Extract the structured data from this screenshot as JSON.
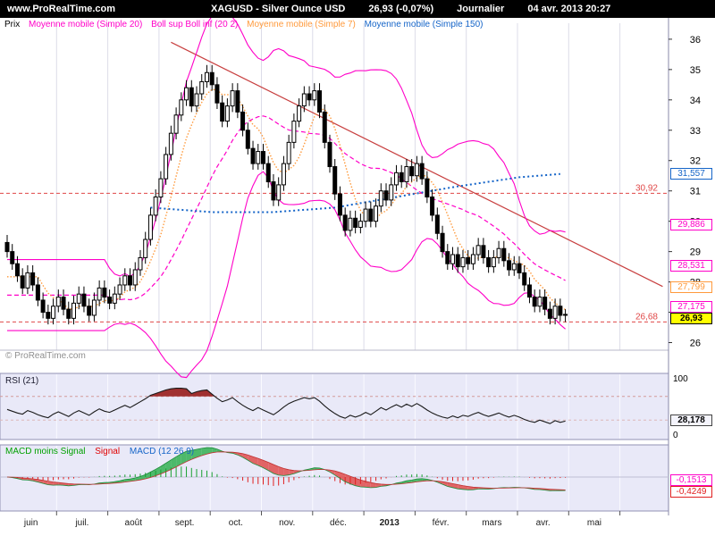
{
  "topbar": {
    "site": "www.ProRealTime.com",
    "instrument": "XAGUSD - Silver Ounce USD",
    "last_price": "26,93 (-0,07%)",
    "period": "Journalier",
    "datetime": "04 avr. 2013 20:27"
  },
  "legend": {
    "items": [
      {
        "label": "Prix",
        "color": "#000000"
      },
      {
        "label": "Moyenne mobile (Simple 20)",
        "color": "#ff00c8"
      },
      {
        "label": "Boll sup Boll inf (20 2)",
        "color": "#ff00c8"
      },
      {
        "label": "Moyenne mobile (Simple 7)",
        "color": "#ff9a3c"
      },
      {
        "label": "Moyenne mobile (Simple 150)",
        "color": "#1464c8"
      }
    ]
  },
  "watermark": "© ProRealTime.com",
  "rsi_panel": {
    "label": "RSI (21)",
    "axis_max": "100",
    "axis_min": "0",
    "last_value": "28,178",
    "last_value_num": 28.178
  },
  "macd_panel": {
    "labels": [
      {
        "label": "MACD moins Signal",
        "color": "#00a000"
      },
      {
        "label": "Signal",
        "color": "#e00000"
      },
      {
        "label": "MACD (12 26 9)",
        "color": "#1464c8"
      }
    ],
    "tags": [
      {
        "text": "-0,1513",
        "value": -0.1513,
        "color": "#ff00c8"
      },
      {
        "text": "-0,4249",
        "value": -0.4249,
        "color": "#e02020"
      }
    ]
  },
  "price_tags": [
    {
      "text": "31,557",
      "value": 31.557,
      "color": "#1464c8"
    },
    {
      "text": "29,886",
      "value": 29.886,
      "color": "#ff00c8"
    },
    {
      "text": "28,531",
      "value": 28.531,
      "color": "#ff00c8"
    },
    {
      "text": "27,799",
      "value": 27.799,
      "color": "#ff9a3c"
    },
    {
      "text": "27,175",
      "value": 27.175,
      "color": "#ff00c8"
    },
    {
      "text": "26,93",
      "value": 26.93,
      "color": "#000000",
      "bg": "#ffff00"
    }
  ],
  "levels": [
    {
      "value": 30.92,
      "label": "30,92"
    },
    {
      "value": 26.68,
      "label": "26,68"
    }
  ],
  "chart_data": {
    "type": "candlestick",
    "title": "XAGUSD - Silver Ounce USD",
    "period": "Journalier (daily)",
    "months": [
      "juin",
      "juil.",
      "août",
      "sept.",
      "oct.",
      "nov.",
      "déc.",
      "2013",
      "févr.",
      "mars",
      "avr.",
      "mai"
    ],
    "candles_per_month": 10,
    "y_ticks": [
      26,
      27,
      28,
      29,
      30,
      31,
      32,
      33,
      34,
      35,
      36
    ],
    "y_range": [
      25.75,
      36.35
    ],
    "candles": [
      [
        29.3,
        29.55,
        28.8,
        29.0
      ],
      [
        29.0,
        29.25,
        28.4,
        28.6
      ],
      [
        28.6,
        28.85,
        28.0,
        28.2
      ],
      [
        28.2,
        28.45,
        27.6,
        27.8
      ],
      [
        27.8,
        28.55,
        27.6,
        28.3
      ],
      [
        28.3,
        28.55,
        27.7,
        27.9
      ],
      [
        27.9,
        28.15,
        27.2,
        27.4
      ],
      [
        27.4,
        27.65,
        26.8,
        27.0
      ],
      [
        27.0,
        27.25,
        26.6,
        26.8
      ],
      [
        26.8,
        27.45,
        26.6,
        27.2
      ],
      [
        27.2,
        27.75,
        27.0,
        27.5
      ],
      [
        27.5,
        27.75,
        26.9,
        27.1
      ],
      [
        27.1,
        27.35,
        26.6,
        26.8
      ],
      [
        26.8,
        27.55,
        26.6,
        27.3
      ],
      [
        27.3,
        27.85,
        27.1,
        27.6
      ],
      [
        27.6,
        27.85,
        27.0,
        27.2
      ],
      [
        27.2,
        27.45,
        26.7,
        26.9
      ],
      [
        26.9,
        27.65,
        26.7,
        27.4
      ],
      [
        27.4,
        28.05,
        27.2,
        27.8
      ],
      [
        27.8,
        28.05,
        27.3,
        27.5
      ],
      [
        27.5,
        27.75,
        27.1,
        27.3
      ],
      [
        27.3,
        27.85,
        27.1,
        27.6
      ],
      [
        27.6,
        28.15,
        27.4,
        27.9
      ],
      [
        27.9,
        28.45,
        27.7,
        28.2
      ],
      [
        28.2,
        28.45,
        27.7,
        27.9
      ],
      [
        27.9,
        28.65,
        27.7,
        28.4
      ],
      [
        28.4,
        29.05,
        28.2,
        28.8
      ],
      [
        28.8,
        29.65,
        28.6,
        29.4
      ],
      [
        29.4,
        30.45,
        29.2,
        30.2
      ],
      [
        30.2,
        31.05,
        30.0,
        30.8
      ],
      [
        30.8,
        31.65,
        30.6,
        31.4
      ],
      [
        31.4,
        32.45,
        31.2,
        32.2
      ],
      [
        32.2,
        33.15,
        32.0,
        32.9
      ],
      [
        32.9,
        33.75,
        32.7,
        33.5
      ],
      [
        33.5,
        34.25,
        33.3,
        34.0
      ],
      [
        34.0,
        34.65,
        33.8,
        34.4
      ],
      [
        34.4,
        34.65,
        33.6,
        33.8
      ],
      [
        33.8,
        34.45,
        33.6,
        34.2
      ],
      [
        34.2,
        34.85,
        34.0,
        34.6
      ],
      [
        34.6,
        35.15,
        34.4,
        34.9
      ],
      [
        34.9,
        35.15,
        34.3,
        34.5
      ],
      [
        34.5,
        34.75,
        33.7,
        33.9
      ],
      [
        33.9,
        34.15,
        33.1,
        33.3
      ],
      [
        33.3,
        34.05,
        33.1,
        33.8
      ],
      [
        33.8,
        34.55,
        33.6,
        34.3
      ],
      [
        34.3,
        34.55,
        33.4,
        33.6
      ],
      [
        33.6,
        33.85,
        32.8,
        33.0
      ],
      [
        33.0,
        33.25,
        32.2,
        32.4
      ],
      [
        32.4,
        32.65,
        31.7,
        31.9
      ],
      [
        31.9,
        32.55,
        31.7,
        32.3
      ],
      [
        32.3,
        32.55,
        31.7,
        31.9
      ],
      [
        31.9,
        32.15,
        31.1,
        31.3
      ],
      [
        31.3,
        31.55,
        30.5,
        30.7
      ],
      [
        30.7,
        31.45,
        30.5,
        31.2
      ],
      [
        31.2,
        32.15,
        31.0,
        31.9
      ],
      [
        31.9,
        32.85,
        31.7,
        32.6
      ],
      [
        32.6,
        33.55,
        32.4,
        33.3
      ],
      [
        33.3,
        34.05,
        33.1,
        33.8
      ],
      [
        33.8,
        34.45,
        33.6,
        34.2
      ],
      [
        34.2,
        34.45,
        33.8,
        34.0
      ],
      [
        34.0,
        34.55,
        33.8,
        34.3
      ],
      [
        34.3,
        34.55,
        33.4,
        33.6
      ],
      [
        33.6,
        33.85,
        32.4,
        32.6
      ],
      [
        32.6,
        32.85,
        31.6,
        31.8
      ],
      [
        31.8,
        32.05,
        30.7,
        30.9
      ],
      [
        30.9,
        31.15,
        30.0,
        30.2
      ],
      [
        30.2,
        30.45,
        29.5,
        29.7
      ],
      [
        29.7,
        30.35,
        29.5,
        30.1
      ],
      [
        30.1,
        30.35,
        29.6,
        29.8
      ],
      [
        29.8,
        30.25,
        29.6,
        30.0
      ],
      [
        30.0,
        30.65,
        29.8,
        30.4
      ],
      [
        30.4,
        30.65,
        29.8,
        30.0
      ],
      [
        30.0,
        30.75,
        29.8,
        30.5
      ],
      [
        30.5,
        31.25,
        30.3,
        31.0
      ],
      [
        31.0,
        31.25,
        30.5,
        30.7
      ],
      [
        30.7,
        31.45,
        30.5,
        31.2
      ],
      [
        31.2,
        31.85,
        31.0,
        31.6
      ],
      [
        31.6,
        31.85,
        31.1,
        31.3
      ],
      [
        31.3,
        32.05,
        31.1,
        31.8
      ],
      [
        31.8,
        32.05,
        31.3,
        31.5
      ],
      [
        31.5,
        32.15,
        31.3,
        31.9
      ],
      [
        31.9,
        32.15,
        31.2,
        31.4
      ],
      [
        31.4,
        31.65,
        30.6,
        30.8
      ],
      [
        30.8,
        31.05,
        30.0,
        30.2
      ],
      [
        30.2,
        30.45,
        29.4,
        29.6
      ],
      [
        29.6,
        29.85,
        28.8,
        29.0
      ],
      [
        29.0,
        29.25,
        28.4,
        28.6
      ],
      [
        28.6,
        29.15,
        28.4,
        28.9
      ],
      [
        28.9,
        29.15,
        28.3,
        28.5
      ],
      [
        28.5,
        29.05,
        28.3,
        28.8
      ],
      [
        28.8,
        29.05,
        28.4,
        28.6
      ],
      [
        28.6,
        29.15,
        28.4,
        28.9
      ],
      [
        28.9,
        29.45,
        28.7,
        29.2
      ],
      [
        29.2,
        29.45,
        28.6,
        28.8
      ],
      [
        28.8,
        29.05,
        28.3,
        28.5
      ],
      [
        28.5,
        29.05,
        28.3,
        28.8
      ],
      [
        28.8,
        29.35,
        28.6,
        29.1
      ],
      [
        29.1,
        29.35,
        28.5,
        28.7
      ],
      [
        28.7,
        28.95,
        28.2,
        28.4
      ],
      [
        28.4,
        28.85,
        28.2,
        28.6
      ],
      [
        28.6,
        28.85,
        28.1,
        28.3
      ],
      [
        28.3,
        28.55,
        27.7,
        27.9
      ],
      [
        27.9,
        28.15,
        27.3,
        27.5
      ],
      [
        27.5,
        27.75,
        27.0,
        27.2
      ],
      [
        27.2,
        27.75,
        27.0,
        27.5
      ],
      [
        27.5,
        27.75,
        26.9,
        27.1
      ],
      [
        27.1,
        27.35,
        26.6,
        26.8
      ],
      [
        26.8,
        27.45,
        26.6,
        27.2
      ],
      [
        27.2,
        27.45,
        26.7,
        26.9
      ],
      [
        26.9,
        27.1,
        26.68,
        26.93
      ]
    ],
    "ma150": {
      "indices": [
        28,
        40,
        52,
        64,
        76,
        88,
        100,
        108
      ],
      "values": [
        30.45,
        30.3,
        30.3,
        30.45,
        30.8,
        31.15,
        31.45,
        31.557
      ]
    },
    "trendline": {
      "from_index": 32,
      "from_value": 35.9,
      "to_index": 128,
      "to_value": 27.85
    },
    "rsi": {
      "period": 21,
      "overbought": 70,
      "oversold": 30,
      "last": 28.178,
      "values": [
        48,
        45,
        42,
        40,
        46,
        43,
        39,
        36,
        34,
        40,
        44,
        40,
        36,
        42,
        46,
        42,
        38,
        44,
        49,
        45,
        43,
        47,
        51,
        55,
        51,
        56,
        61,
        66,
        72,
        75,
        78,
        81,
        83,
        84,
        84,
        83,
        75,
        78,
        80,
        81,
        74,
        67,
        61,
        64,
        68,
        61,
        55,
        50,
        46,
        51,
        47,
        43,
        39,
        45,
        52,
        58,
        62,
        65,
        68,
        66,
        68,
        62,
        54,
        47,
        41,
        36,
        33,
        38,
        35,
        38,
        43,
        39,
        45,
        51,
        47,
        52,
        56,
        52,
        57,
        53,
        58,
        53,
        47,
        42,
        38,
        35,
        33,
        37,
        34,
        38,
        36,
        40,
        43,
        39,
        36,
        39,
        42,
        38,
        35,
        38,
        35,
        31,
        28,
        26,
        30,
        27,
        24,
        29,
        26,
        28.178
      ]
    },
    "macd": {
      "fast": 12,
      "slow": 26,
      "signal": 9,
      "last_hist": -0.1513,
      "last_macd": -0.4249
    }
  }
}
